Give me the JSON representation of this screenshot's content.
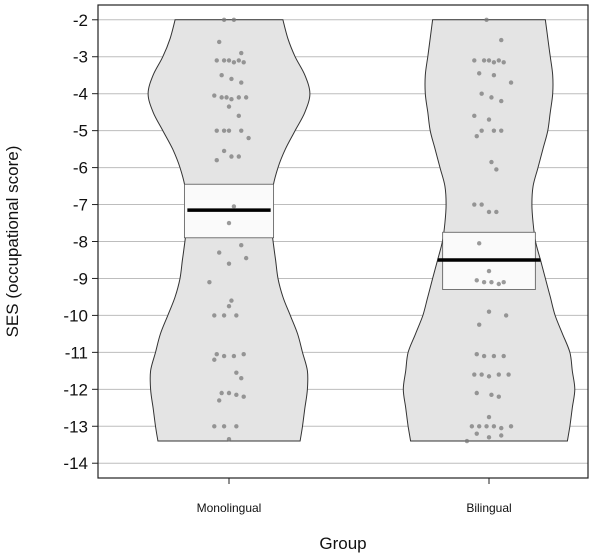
{
  "chart_data": {
    "type": "violin",
    "title": "",
    "xlabel": "Group",
    "ylabel": "SES (occupational score)",
    "ylim": [
      -14.4,
      -1.6
    ],
    "yticks": [
      -2,
      -3,
      -4,
      -5,
      -6,
      -7,
      -8,
      -9,
      -10,
      -11,
      -12,
      -13,
      -14
    ],
    "grid": "horizontal",
    "categories": [
      "Monolingual",
      "Bilingual"
    ],
    "colors": {
      "violin_fill": "#e4e4e4",
      "violin_stroke": "#333333",
      "band_fill": "#fafafa",
      "mean_line": "#000000",
      "points": "#7a7a7a",
      "grid": "#bdbdbd"
    },
    "series": [
      {
        "category": "Monolingual",
        "mean": -7.15,
        "band": [
          -6.45,
          -7.9
        ],
        "shape": [
          [
            -2.0,
            0.22
          ],
          [
            -2.5,
            0.24
          ],
          [
            -3.0,
            0.27
          ],
          [
            -3.5,
            0.31
          ],
          [
            -4.0,
            0.33
          ],
          [
            -4.5,
            0.31
          ],
          [
            -5.0,
            0.27
          ],
          [
            -5.5,
            0.23
          ],
          [
            -6.0,
            0.2
          ],
          [
            -6.5,
            0.18
          ],
          [
            -7.0,
            0.17
          ],
          [
            -7.5,
            0.17
          ],
          [
            -8.0,
            0.18
          ],
          [
            -8.5,
            0.19
          ],
          [
            -9.0,
            0.2
          ],
          [
            -9.5,
            0.22
          ],
          [
            -10.0,
            0.25
          ],
          [
            -10.5,
            0.28
          ],
          [
            -11.0,
            0.3
          ],
          [
            -11.5,
            0.32
          ],
          [
            -12.0,
            0.32
          ],
          [
            -12.5,
            0.31
          ],
          [
            -13.0,
            0.3
          ],
          [
            -13.4,
            0.29
          ]
        ],
        "points": [
          [
            -0.02,
            -2.0
          ],
          [
            0.02,
            -2.0
          ],
          [
            -0.04,
            -2.6
          ],
          [
            0.05,
            -2.9
          ],
          [
            -0.05,
            -3.1
          ],
          [
            -0.02,
            -3.1
          ],
          [
            0.0,
            -3.1
          ],
          [
            0.02,
            -3.15
          ],
          [
            0.04,
            -3.1
          ],
          [
            0.06,
            -3.15
          ],
          [
            -0.03,
            -3.5
          ],
          [
            0.01,
            -3.6
          ],
          [
            0.05,
            -3.7
          ],
          [
            -0.06,
            -4.05
          ],
          [
            -0.03,
            -4.1
          ],
          [
            -0.01,
            -4.1
          ],
          [
            0.01,
            -4.15
          ],
          [
            0.04,
            -4.1
          ],
          [
            0.07,
            -4.1
          ],
          [
            0.0,
            -4.35
          ],
          [
            0.04,
            -4.6
          ],
          [
            -0.02,
            -5.0
          ],
          [
            -0.05,
            -5.0
          ],
          [
            0.0,
            -5.0
          ],
          [
            0.05,
            -5.0
          ],
          [
            0.08,
            -5.2
          ],
          [
            -0.02,
            -5.55
          ],
          [
            0.01,
            -5.7
          ],
          [
            -0.05,
            -5.8
          ],
          [
            0.04,
            -5.7
          ],
          [
            0.02,
            -7.05
          ],
          [
            0.0,
            -7.5
          ],
          [
            0.05,
            -8.1
          ],
          [
            -0.04,
            -8.3
          ],
          [
            0.07,
            -8.45
          ],
          [
            0.0,
            -8.6
          ],
          [
            -0.08,
            -9.1
          ],
          [
            0.01,
            -9.6
          ],
          [
            0.0,
            -9.75
          ],
          [
            -0.06,
            -10.0
          ],
          [
            -0.02,
            -10.0
          ],
          [
            0.03,
            -10.0
          ],
          [
            -0.05,
            -11.05
          ],
          [
            -0.02,
            -11.1
          ],
          [
            0.02,
            -11.1
          ],
          [
            0.06,
            -11.05
          ],
          [
            -0.06,
            -11.2
          ],
          [
            0.03,
            -11.55
          ],
          [
            0.05,
            -11.7
          ],
          [
            -0.03,
            -12.1
          ],
          [
            0.0,
            -12.1
          ],
          [
            0.03,
            -12.15
          ],
          [
            0.06,
            -12.2
          ],
          [
            -0.04,
            -12.3
          ],
          [
            -0.06,
            -13.0
          ],
          [
            -0.02,
            -13.0
          ],
          [
            0.03,
            -13.0
          ],
          [
            0.0,
            -13.35
          ]
        ]
      },
      {
        "category": "Bilingual",
        "mean": -8.5,
        "band": [
          -7.75,
          -9.3
        ],
        "shape": [
          [
            -2.0,
            0.23
          ],
          [
            -2.5,
            0.24
          ],
          [
            -3.0,
            0.25
          ],
          [
            -3.5,
            0.26
          ],
          [
            -4.0,
            0.26
          ],
          [
            -4.5,
            0.25
          ],
          [
            -5.0,
            0.24
          ],
          [
            -5.5,
            0.22
          ],
          [
            -6.0,
            0.2
          ],
          [
            -6.5,
            0.18
          ],
          [
            -7.0,
            0.175
          ],
          [
            -7.5,
            0.18
          ],
          [
            -8.0,
            0.19
          ],
          [
            -8.5,
            0.21
          ],
          [
            -9.0,
            0.23
          ],
          [
            -9.5,
            0.25
          ],
          [
            -10.0,
            0.27
          ],
          [
            -10.5,
            0.3
          ],
          [
            -11.0,
            0.33
          ],
          [
            -11.5,
            0.34
          ],
          [
            -12.0,
            0.35
          ],
          [
            -12.5,
            0.34
          ],
          [
            -13.0,
            0.33
          ],
          [
            -13.4,
            0.32
          ]
        ],
        "points": [
          [
            -0.01,
            -2.0
          ],
          [
            0.05,
            -2.55
          ],
          [
            -0.06,
            -3.1
          ],
          [
            -0.02,
            -3.1
          ],
          [
            0.0,
            -3.1
          ],
          [
            0.02,
            -3.15
          ],
          [
            0.04,
            -3.1
          ],
          [
            0.06,
            -3.15
          ],
          [
            -0.04,
            -3.45
          ],
          [
            0.02,
            -3.5
          ],
          [
            0.09,
            -3.7
          ],
          [
            -0.03,
            -4.0
          ],
          [
            0.01,
            -4.1
          ],
          [
            0.05,
            -4.2
          ],
          [
            -0.06,
            -4.6
          ],
          [
            0.0,
            -4.7
          ],
          [
            -0.03,
            -5.0
          ],
          [
            0.02,
            -5.0
          ],
          [
            0.05,
            -5.0
          ],
          [
            -0.05,
            -5.15
          ],
          [
            0.01,
            -5.85
          ],
          [
            0.03,
            -6.05
          ],
          [
            -0.06,
            -7.0
          ],
          [
            -0.03,
            -7.0
          ],
          [
            0.0,
            -7.2
          ],
          [
            0.03,
            -7.2
          ],
          [
            -0.04,
            -8.05
          ],
          [
            0.0,
            -8.8
          ],
          [
            -0.05,
            -9.05
          ],
          [
            -0.02,
            -9.1
          ],
          [
            0.01,
            -9.1
          ],
          [
            0.04,
            -9.15
          ],
          [
            0.06,
            -9.1
          ],
          [
            0.0,
            -9.9
          ],
          [
            -0.04,
            -10.25
          ],
          [
            0.07,
            -10.0
          ],
          [
            -0.05,
            -11.05
          ],
          [
            -0.02,
            -11.1
          ],
          [
            0.02,
            -11.1
          ],
          [
            0.06,
            -11.1
          ],
          [
            -0.06,
            -11.6
          ],
          [
            -0.03,
            -11.6
          ],
          [
            0.0,
            -11.65
          ],
          [
            0.04,
            -11.6
          ],
          [
            0.08,
            -11.6
          ],
          [
            -0.05,
            -12.1
          ],
          [
            0.01,
            -12.15
          ],
          [
            0.04,
            -12.2
          ],
          [
            0.0,
            -12.75
          ],
          [
            -0.07,
            -13.0
          ],
          [
            -0.04,
            -13.0
          ],
          [
            -0.01,
            -13.0
          ],
          [
            0.02,
            -13.0
          ],
          [
            0.05,
            -13.05
          ],
          [
            0.09,
            -13.0
          ],
          [
            -0.05,
            -13.2
          ],
          [
            0.0,
            -13.3
          ],
          [
            0.05,
            -13.25
          ],
          [
            -0.09,
            -13.4
          ]
        ]
      }
    ]
  }
}
